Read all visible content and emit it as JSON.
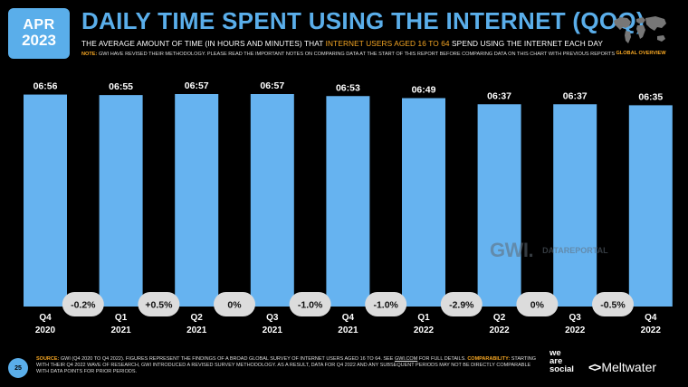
{
  "header": {
    "month": "APR",
    "year": "2023",
    "title": "DAILY TIME SPENT USING THE INTERNET (QOQ)",
    "subtitle_pre": "THE AVERAGE AMOUNT OF TIME (IN HOURS AND MINUTES) THAT ",
    "subtitle_hl": "INTERNET USERS AGED 16 TO 64",
    "subtitle_post": " SPEND USING THE INTERNET EACH DAY",
    "note_label": "NOTE:",
    "note_text": " GWI HAVE REVISED THEIR METHODOLOGY. PLEASE READ THE IMPORTANT NOTES ON COMPARING DATA AT THE START OF THIS REPORT BEFORE COMPARING DATA ON THIS CHART WITH PREVIOUS REPORTS",
    "badge": "GLOBAL OVERVIEW"
  },
  "chart_data": {
    "type": "bar",
    "categories": [
      [
        "Q4",
        "2020"
      ],
      [
        "Q1",
        "2021"
      ],
      [
        "Q2",
        "2021"
      ],
      [
        "Q3",
        "2021"
      ],
      [
        "Q4",
        "2021"
      ],
      [
        "Q1",
        "2022"
      ],
      [
        "Q2",
        "2022"
      ],
      [
        "Q3",
        "2022"
      ],
      [
        "Q4",
        "2022"
      ]
    ],
    "values": [
      "06:56",
      "06:55",
      "06:57",
      "06:57",
      "06:53",
      "06:49",
      "06:37",
      "06:37",
      "06:35"
    ],
    "changes": [
      "-0.2%",
      "+0.5%",
      "0%",
      "-1.0%",
      "-1.0%",
      "-2.9%",
      "0%",
      "-0.5%"
    ],
    "bar_color": "#66b3f0",
    "badge_color": "#dcdcdc"
  },
  "watermark": {
    "brand1": "GWI.",
    "brand2": "DATAREPORTAL"
  },
  "footer": {
    "page": "25",
    "source_label": "SOURCE:",
    "source_text": " GWI (Q4 2020 TO Q4 2022). FIGURES REPRESENT THE FINDINGS OF A BROAD GLOBAL SURVEY OF INTERNET USERS AGED 16 TO 64. SEE ",
    "source_link": "GWI.COM",
    "source_text2": " FOR FULL DETAILS. ",
    "comp_label": "COMPARABILITY:",
    "comp_text": " STARTING WITH THEIR Q4 2022 WAVE OF RESEARCH, GWI INTRODUCED A REVISED SURVEY METHODOLOGY. AS A RESULT, DATA FOR Q4 2022 AND ANY SUBSEQUENT PERIODS MAY NOT BE DIRECTLY COMPARABLE WITH DATA POINTS FOR PRIOR PERIODS.",
    "was_line1": "we",
    "was_line2": "are",
    "was_line3": "social",
    "meltwater": "Meltwater"
  }
}
